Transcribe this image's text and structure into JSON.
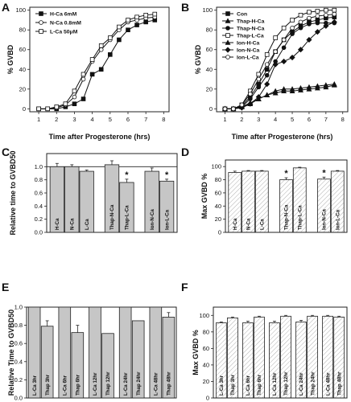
{
  "figure": {
    "panels": {
      "A": {
        "letter": "A"
      },
      "B": {
        "letter": "B"
      },
      "C": {
        "letter": "C"
      },
      "D": {
        "letter": "D"
      },
      "E": {
        "letter": "E"
      },
      "F": {
        "letter": "F"
      }
    }
  },
  "chart_data": [
    {
      "panel": "A",
      "type": "line",
      "xlabel": "Time after Progesterone (hrs)",
      "ylabel": "% GVBD",
      "xlim": [
        0.5,
        8.3
      ],
      "ylim": [
        -3,
        103
      ],
      "xticks": [
        1,
        2,
        3,
        4,
        5,
        6,
        7,
        8
      ],
      "yticks": [
        0,
        20,
        40,
        60,
        80,
        100
      ],
      "legend": "top-left",
      "x": [
        1,
        1.5,
        2,
        2.5,
        3,
        3.5,
        4,
        4.5,
        5,
        5.5,
        6,
        6.5,
        7,
        7.5
      ],
      "series": [
        {
          "name": "H-Ca  6mM",
          "marker": "filled-square",
          "values": [
            0,
            0,
            0,
            2,
            5,
            10,
            35,
            40,
            55,
            70,
            80,
            85,
            88,
            90
          ]
        },
        {
          "name": "N-Ca  0.8mM",
          "marker": "open-circle",
          "values": [
            0,
            0,
            1,
            4,
            12,
            30,
            48,
            60,
            70,
            80,
            88,
            90,
            92,
            93
          ]
        },
        {
          "name": "L-Ca  50μM",
          "marker": "open-square",
          "values": [
            0,
            0,
            2,
            5,
            18,
            35,
            50,
            64,
            72,
            83,
            90,
            93,
            95,
            96
          ]
        }
      ]
    },
    {
      "panel": "B",
      "type": "line",
      "xlabel": "Time after Progesterone (hrs)",
      "ylabel": "% GVBD",
      "xlim": [
        0.5,
        8.3
      ],
      "ylim": [
        -3,
        103
      ],
      "xticks": [
        1,
        2,
        3,
        4,
        5,
        6,
        7,
        8
      ],
      "yticks": [
        0,
        20,
        40,
        60,
        80,
        100
      ],
      "legend": "top-left",
      "x": [
        1,
        1.5,
        2,
        2.5,
        3,
        3.5,
        4,
        4.5,
        5,
        5.5,
        6,
        6.5,
        7,
        7.5
      ],
      "series": [
        {
          "name": "Con",
          "marker": "filled-square",
          "values": [
            0,
            0,
            3,
            12,
            25,
            40,
            58,
            70,
            78,
            84,
            88,
            90,
            92,
            93
          ]
        },
        {
          "name": "Thap-H-Ca",
          "marker": "filled-triangle",
          "values": [
            0,
            0,
            2,
            5,
            10,
            14,
            18,
            20,
            20,
            21,
            22,
            23,
            24,
            25
          ]
        },
        {
          "name": "Thap-N-Ca",
          "marker": "filled-circle",
          "values": [
            0,
            0,
            2,
            10,
            22,
            34,
            48,
            62,
            76,
            82,
            86,
            87,
            87,
            87
          ]
        },
        {
          "name": "Thap-L-Ca",
          "marker": "open-square",
          "values": [
            0,
            0,
            4,
            18,
            35,
            55,
            72,
            82,
            90,
            95,
            98,
            99,
            100,
            100
          ]
        },
        {
          "name": "Ion-H-Ca",
          "marker": "filled-up-triangle",
          "values": [
            0,
            0,
            2,
            6,
            10,
            14,
            16,
            18,
            18,
            19,
            20,
            21,
            22,
            24
          ]
        },
        {
          "name": "Ion-N-Ca",
          "marker": "filled-diamond",
          "values": [
            0,
            0,
            1,
            5,
            12,
            25,
            45,
            48,
            52,
            60,
            70,
            78,
            84,
            88
          ]
        },
        {
          "name": "Ion-L-Ca",
          "marker": "open-circle",
          "values": [
            0,
            0,
            4,
            15,
            30,
            45,
            58,
            70,
            82,
            88,
            92,
            94,
            95,
            96
          ]
        }
      ]
    },
    {
      "panel": "C",
      "type": "bar",
      "ylabel": "Relative time to GVBD50",
      "ylim": [
        0,
        1.2
      ],
      "yticks": [
        0,
        0.2,
        0.4,
        0.6,
        0.8,
        1.0
      ],
      "reference_line": 1.0,
      "categories": [
        "H-Ca",
        "N-Ca",
        "L-Ca",
        "Thap-N-Ca",
        "Thap-L-Ca",
        "Ion-N-Ca",
        "Ion-L-Ca"
      ],
      "groups": [
        [
          0,
          1,
          2
        ],
        [
          3,
          4
        ],
        [
          5,
          6
        ]
      ],
      "values": [
        1.0,
        1.0,
        0.93,
        1.03,
        0.76,
        0.93,
        0.78
      ],
      "errors": [
        0.05,
        0.03,
        0.02,
        0.06,
        0.05,
        0.05,
        0.03
      ],
      "significant": [
        false,
        false,
        false,
        false,
        true,
        false,
        true
      ]
    },
    {
      "panel": "D",
      "type": "bar",
      "ylabel": "Max GVBD %",
      "ylim": [
        0,
        110
      ],
      "yticks": [
        0,
        20,
        40,
        60,
        80,
        100
      ],
      "categories": [
        "H-Ca",
        "N-Ca",
        "L-Ca",
        "Thap-N-Ca",
        "Thap-L-Ca",
        "Ion-N-Ca",
        "Ion-L-Ca"
      ],
      "groups": [
        [
          0,
          1,
          2
        ],
        [
          3,
          4
        ],
        [
          5,
          6
        ]
      ],
      "values": [
        91,
        93,
        93,
        80,
        98,
        81,
        93
      ],
      "errors": [
        2,
        1,
        1,
        3,
        1,
        3,
        1
      ],
      "significant": [
        false,
        false,
        false,
        true,
        false,
        true,
        false
      ]
    },
    {
      "panel": "E",
      "type": "bar",
      "ylabel": "Relative Time to GVBD50",
      "ylim": [
        0,
        1.0
      ],
      "yticks": [
        0,
        0.2,
        0.4,
        0.6,
        0.8,
        1.0
      ],
      "categories": [
        "L-Ca 3hr",
        "Thap 3hr",
        "L-Ca 6hr",
        "Thap 6hr",
        "L-Ca 12hr",
        "Thap 12hr",
        "L-Ca 24hr",
        "Thap 24hr",
        "L-Ca 48hr",
        "Thap 48hr"
      ],
      "groups": [
        [
          0,
          1
        ],
        [
          2,
          3
        ],
        [
          4,
          5
        ],
        [
          6,
          7
        ],
        [
          8,
          9
        ]
      ],
      "values": [
        1.0,
        0.79,
        1.0,
        0.72,
        1.0,
        0.71,
        1.0,
        0.85,
        1.0,
        0.89
      ],
      "errors": [
        0,
        0.06,
        0,
        0.08,
        0,
        0,
        0,
        0,
        0,
        0.05
      ]
    },
    {
      "panel": "F",
      "type": "bar",
      "ylabel": "Max GVBD %",
      "ylim": [
        0,
        110
      ],
      "yticks": [
        0,
        20,
        40,
        60,
        80,
        100
      ],
      "categories": [
        "L-Ca 3hr",
        "Thap 3hr",
        "L-Ca 6hr",
        "Thap 6hr",
        "L-Ca 12hr",
        "Thap 12hr",
        "L-Ca 24hr",
        "Thap 24hr",
        "L-Ca 48hr",
        "Thap 48hr"
      ],
      "groups": [
        [
          0,
          1
        ],
        [
          2,
          3
        ],
        [
          4,
          5
        ],
        [
          6,
          7
        ],
        [
          8,
          9
        ]
      ],
      "values": [
        91,
        97,
        91,
        98,
        91,
        99,
        92,
        99,
        99,
        98
      ],
      "errors": [
        1,
        1,
        2,
        1,
        2,
        1,
        2,
        1,
        1,
        1
      ]
    }
  ]
}
